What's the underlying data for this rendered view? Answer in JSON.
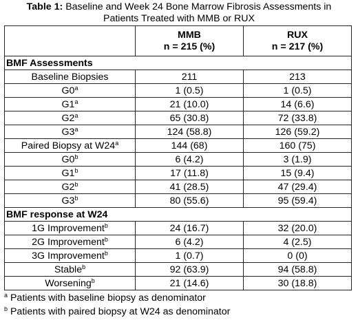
{
  "title": {
    "label": "Table 1:",
    "line1": "Baseline and Week 24 Bone Marrow Fibrosis Assessments in",
    "line2": "Patients Treated with MMB or RUX"
  },
  "columns": [
    {
      "name": "MMB",
      "n": "n = 215 (%)"
    },
    {
      "name": "RUX",
      "n": "n = 217 (%)"
    }
  ],
  "sections": [
    {
      "title": "BMF Assessments",
      "rows": [
        {
          "label": "Baseline Biopsies",
          "sup": "",
          "mmb": "211",
          "rux": "213"
        },
        {
          "label": "G0",
          "sup": "a",
          "mmb": "1 (0.5)",
          "rux": "1 (0.5)"
        },
        {
          "label": "G1",
          "sup": "a",
          "mmb": "21 (10.0)",
          "rux": "14 (6.6)"
        },
        {
          "label": "G2",
          "sup": "a",
          "mmb": "65 (30.8)",
          "rux": "72 (33.8)"
        },
        {
          "label": "G3",
          "sup": "a",
          "mmb": "124 (58.8)",
          "rux": "126 (59.2)"
        },
        {
          "label": "Paired Biopsy at W24",
          "sup": "a",
          "mmb": "144 (68)",
          "rux": "160 (75)"
        },
        {
          "label": "G0",
          "sup": "b",
          "mmb": "6 (4.2)",
          "rux": "3 (1.9)"
        },
        {
          "label": "G1",
          "sup": "b",
          "mmb": "17 (11.8)",
          "rux": "15 (9.4)"
        },
        {
          "label": "G2",
          "sup": "b",
          "mmb": "41 (28.5)",
          "rux": "47 (29.4)"
        },
        {
          "label": "G3",
          "sup": "b",
          "mmb": "80 (55.6)",
          "rux": "95 (59.4)"
        }
      ]
    },
    {
      "title": "BMF response at W24",
      "rows": [
        {
          "label": "1G Improvement",
          "sup": "b",
          "mmb": "24 (16.7)",
          "rux": "32 (20.0)"
        },
        {
          "label": "2G Improvement",
          "sup": "b",
          "mmb": "6 (4.2)",
          "rux": "4 (2.5)"
        },
        {
          "label": "3G Improvement",
          "sup": "b",
          "mmb": "1 (0.7)",
          "rux": "0 (0)"
        },
        {
          "label": "Stable",
          "sup": "b",
          "mmb": "92 (63.9)",
          "rux": "94 (58.8)"
        },
        {
          "label": "Worsening",
          "sup": "b",
          "mmb": "21 (14.6)",
          "rux": "30 (18.8)"
        }
      ]
    }
  ],
  "footnotes": [
    {
      "mark": "a",
      "text": "Patients with baseline biopsy as denominator"
    },
    {
      "mark": "b",
      "text": "Patients with paired biopsy at W24 as denominator"
    }
  ]
}
